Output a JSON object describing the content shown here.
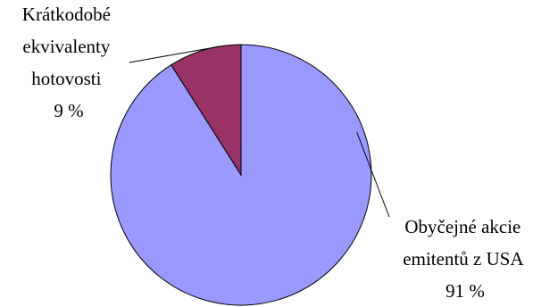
{
  "chart_data": {
    "type": "pie",
    "title": "",
    "legend": "none",
    "slices": [
      {
        "label_lines": [
          "Obyčejné akcie",
          "emitentů z USA"
        ],
        "value_label": "91 %",
        "value": 91,
        "color": "#9999ff"
      },
      {
        "label_lines": [
          "Krátkodobé",
          "ekvivalenty",
          "hotovosti"
        ],
        "value_label": "9 %",
        "value": 9,
        "color": "#993366"
      }
    ]
  }
}
